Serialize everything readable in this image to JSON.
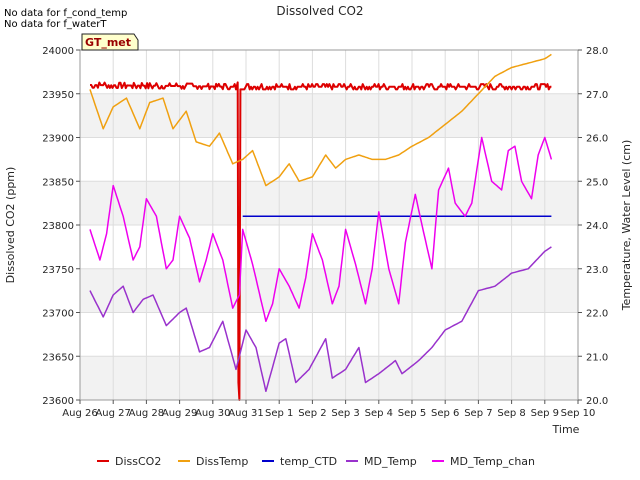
{
  "notes": [
    "No data for f_cond_temp",
    "No data for f_waterT"
  ],
  "chart_data": {
    "type": "line",
    "title": "Dissolved CO2",
    "xlabel": "Time",
    "ylabel_left": "Dissolved CO2 (ppm)",
    "ylabel_right": "Temperature, Water Level (cm)",
    "badge": "GT_met",
    "grid": true,
    "legend_position": "bottom",
    "xlim": [
      0,
      15
    ],
    "x_ticks": [
      {
        "x": 0,
        "label": "Aug 26"
      },
      {
        "x": 1,
        "label": "Aug 27"
      },
      {
        "x": 2,
        "label": "Aug 28"
      },
      {
        "x": 3,
        "label": "Aug 29"
      },
      {
        "x": 4,
        "label": "Aug 30"
      },
      {
        "x": 5,
        "label": "Aug 31"
      },
      {
        "x": 6,
        "label": "Sep 1"
      },
      {
        "x": 7,
        "label": "Sep 2"
      },
      {
        "x": 8,
        "label": "Sep 3"
      },
      {
        "x": 9,
        "label": "Sep 4"
      },
      {
        "x": 10,
        "label": "Sep 5"
      },
      {
        "x": 11,
        "label": "Sep 6"
      },
      {
        "x": 12,
        "label": "Sep 7"
      },
      {
        "x": 13,
        "label": "Sep 8"
      },
      {
        "x": 14,
        "label": "Sep 9"
      },
      {
        "x": 15,
        "label": "Sep 10"
      }
    ],
    "ylim_left": [
      23600,
      24000
    ],
    "y_ticks_left": [
      23600,
      23650,
      23700,
      23750,
      23800,
      23850,
      23900,
      23950,
      24000
    ],
    "ylim_right": [
      20.0,
      28.0
    ],
    "y_ticks_right": [
      "20.0",
      "21.0",
      "22.0",
      "23.0",
      "24.0",
      "25.0",
      "26.0",
      "27.0",
      "28.0"
    ],
    "series": [
      {
        "name": "DissCO2",
        "axis": "left",
        "color": "#dd0000",
        "noise": 3,
        "points": [
          [
            0.3,
            23960
          ],
          [
            4.7,
            23958
          ],
          [
            4.75,
            23960
          ],
          [
            4.77,
            23620
          ],
          [
            4.8,
            23600
          ],
          [
            4.83,
            23958
          ],
          [
            14.2,
            23958
          ]
        ]
      },
      {
        "name": "DissTemp",
        "axis": "right",
        "color": "#f0a010",
        "points": [
          [
            0.3,
            27.1
          ],
          [
            0.7,
            26.2
          ],
          [
            1.0,
            26.7
          ],
          [
            1.4,
            26.9
          ],
          [
            1.8,
            26.2
          ],
          [
            2.1,
            26.8
          ],
          [
            2.5,
            26.9
          ],
          [
            2.8,
            26.2
          ],
          [
            3.2,
            26.6
          ],
          [
            3.5,
            25.9
          ],
          [
            3.9,
            25.8
          ],
          [
            4.2,
            26.1
          ],
          [
            4.6,
            25.4
          ],
          [
            4.9,
            25.5
          ],
          [
            5.2,
            25.7
          ],
          [
            5.6,
            24.9
          ],
          [
            6.0,
            25.1
          ],
          [
            6.3,
            25.4
          ],
          [
            6.6,
            25.0
          ],
          [
            7.0,
            25.1
          ],
          [
            7.4,
            25.6
          ],
          [
            7.7,
            25.3
          ],
          [
            8.0,
            25.5
          ],
          [
            8.4,
            25.6
          ],
          [
            8.8,
            25.5
          ],
          [
            9.2,
            25.5
          ],
          [
            9.6,
            25.6
          ],
          [
            10.0,
            25.8
          ],
          [
            10.5,
            26.0
          ],
          [
            11.0,
            26.3
          ],
          [
            11.5,
            26.6
          ],
          [
            12.0,
            27.0
          ],
          [
            12.5,
            27.4
          ],
          [
            13.0,
            27.6
          ],
          [
            13.5,
            27.7
          ],
          [
            14.0,
            27.8
          ],
          [
            14.2,
            27.9
          ]
        ]
      },
      {
        "name": "temp_CTD",
        "axis": "right",
        "color": "#0000cc",
        "points": [
          [
            4.9,
            24.2
          ],
          [
            14.2,
            24.2
          ]
        ]
      },
      {
        "name": "MD_Temp",
        "axis": "right",
        "color": "#9932cc",
        "points": [
          [
            0.3,
            22.5
          ],
          [
            0.7,
            21.9
          ],
          [
            1.0,
            22.4
          ],
          [
            1.3,
            22.6
          ],
          [
            1.6,
            22.0
          ],
          [
            1.9,
            22.3
          ],
          [
            2.2,
            22.4
          ],
          [
            2.6,
            21.7
          ],
          [
            3.0,
            22.0
          ],
          [
            3.2,
            22.1
          ],
          [
            3.6,
            21.1
          ],
          [
            3.9,
            21.2
          ],
          [
            4.3,
            21.8
          ],
          [
            4.7,
            20.7
          ],
          [
            5.0,
            21.6
          ],
          [
            5.3,
            21.2
          ],
          [
            5.6,
            20.2
          ],
          [
            6.0,
            21.3
          ],
          [
            6.2,
            21.4
          ],
          [
            6.5,
            20.4
          ],
          [
            6.9,
            20.7
          ],
          [
            7.4,
            21.4
          ],
          [
            7.6,
            20.5
          ],
          [
            8.0,
            20.7
          ],
          [
            8.4,
            21.2
          ],
          [
            8.6,
            20.4
          ],
          [
            9.0,
            20.6
          ],
          [
            9.5,
            20.9
          ],
          [
            9.7,
            20.6
          ],
          [
            10.2,
            20.9
          ],
          [
            10.6,
            21.2
          ],
          [
            11.0,
            21.6
          ],
          [
            11.5,
            21.8
          ],
          [
            12.0,
            22.5
          ],
          [
            12.5,
            22.6
          ],
          [
            13.0,
            22.9
          ],
          [
            13.5,
            23.0
          ],
          [
            14.0,
            23.4
          ],
          [
            14.2,
            23.5
          ]
        ]
      },
      {
        "name": "MD_Temp_chan",
        "axis": "right",
        "color": "#ee00ee",
        "points": [
          [
            0.3,
            23.9
          ],
          [
            0.6,
            23.2
          ],
          [
            0.8,
            23.8
          ],
          [
            1.0,
            24.9
          ],
          [
            1.3,
            24.2
          ],
          [
            1.6,
            23.2
          ],
          [
            1.8,
            23.5
          ],
          [
            2.0,
            24.6
          ],
          [
            2.3,
            24.2
          ],
          [
            2.6,
            23.0
          ],
          [
            2.8,
            23.2
          ],
          [
            3.0,
            24.2
          ],
          [
            3.3,
            23.7
          ],
          [
            3.6,
            22.7
          ],
          [
            3.8,
            23.2
          ],
          [
            4.0,
            23.8
          ],
          [
            4.3,
            23.2
          ],
          [
            4.6,
            22.1
          ],
          [
            4.8,
            22.4
          ],
          [
            4.9,
            23.9
          ],
          [
            5.2,
            23.1
          ],
          [
            5.6,
            21.8
          ],
          [
            5.8,
            22.2
          ],
          [
            6.0,
            23.0
          ],
          [
            6.3,
            22.6
          ],
          [
            6.6,
            22.1
          ],
          [
            6.8,
            22.8
          ],
          [
            7.0,
            23.8
          ],
          [
            7.3,
            23.2
          ],
          [
            7.6,
            22.2
          ],
          [
            7.8,
            22.6
          ],
          [
            8.0,
            23.9
          ],
          [
            8.3,
            23.1
          ],
          [
            8.6,
            22.2
          ],
          [
            8.8,
            23.0
          ],
          [
            9.0,
            24.3
          ],
          [
            9.3,
            23.0
          ],
          [
            9.6,
            22.2
          ],
          [
            9.8,
            23.6
          ],
          [
            10.1,
            24.7
          ],
          [
            10.3,
            24.0
          ],
          [
            10.6,
            23.0
          ],
          [
            10.8,
            24.8
          ],
          [
            11.1,
            25.3
          ],
          [
            11.3,
            24.5
          ],
          [
            11.6,
            24.2
          ],
          [
            11.8,
            24.5
          ],
          [
            12.1,
            26.0
          ],
          [
            12.4,
            25.0
          ],
          [
            12.7,
            24.8
          ],
          [
            12.9,
            25.7
          ],
          [
            13.1,
            25.8
          ],
          [
            13.3,
            25.0
          ],
          [
            13.6,
            24.6
          ],
          [
            13.8,
            25.6
          ],
          [
            14.0,
            26.0
          ],
          [
            14.2,
            25.5
          ]
        ]
      }
    ]
  }
}
